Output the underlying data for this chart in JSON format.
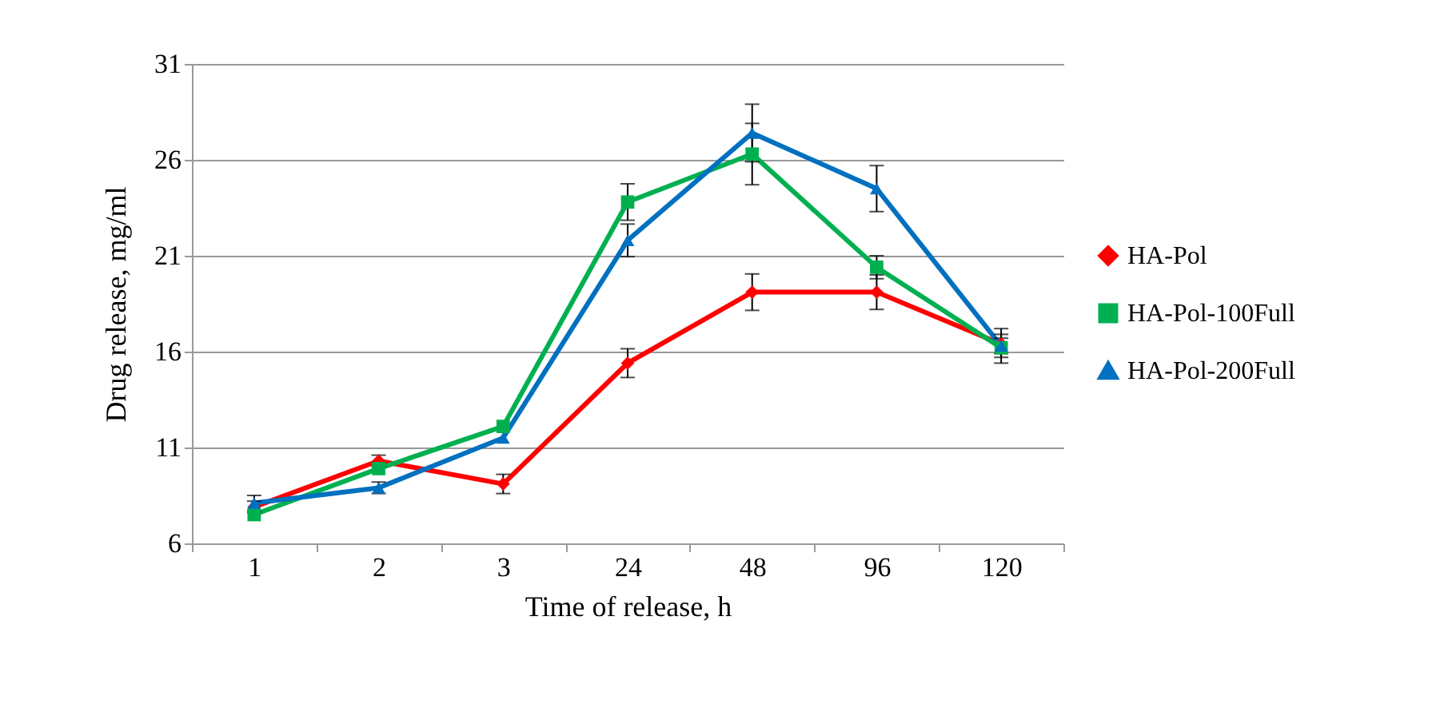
{
  "chart_data": {
    "type": "line",
    "xlabel": "Time of release, h",
    "ylabel": "Drug release, mg/ml",
    "categories": [
      "1",
      "2",
      "3",
      "24",
      "48",
      "96",
      "120"
    ],
    "ylim": [
      6,
      31
    ],
    "yticks": [
      6,
      11,
      16,
      21,
      26,
      31
    ],
    "grid": "y",
    "legend": "right",
    "series": [
      {
        "name": "HA-Pol",
        "color": "#ff0000",
        "marker": "diamond",
        "values": [
          7.9,
          10.3,
          9.1,
          15.4,
          19.1,
          19.1,
          16.4
        ],
        "errors": [
          0.3,
          0.3,
          0.5,
          0.75,
          0.95,
          0.9,
          0.5
        ]
      },
      {
        "name": "HA-Pol-100Full",
        "color": "#00b050",
        "marker": "square",
        "values": [
          7.5,
          9.9,
          12.1,
          23.8,
          26.3,
          20.4,
          16.2
        ],
        "errors": [
          null,
          null,
          null,
          0.95,
          1.6,
          0.6,
          0.5
        ]
      },
      {
        "name": "HA-Pol-200Full",
        "color": "#0070c0",
        "marker": "triangle",
        "values": [
          8.1,
          8.9,
          11.5,
          21.8,
          27.4,
          24.5,
          16.3
        ],
        "errors": [
          0.4,
          0.3,
          null,
          0.85,
          1.5,
          1.2,
          0.9
        ]
      }
    ]
  }
}
